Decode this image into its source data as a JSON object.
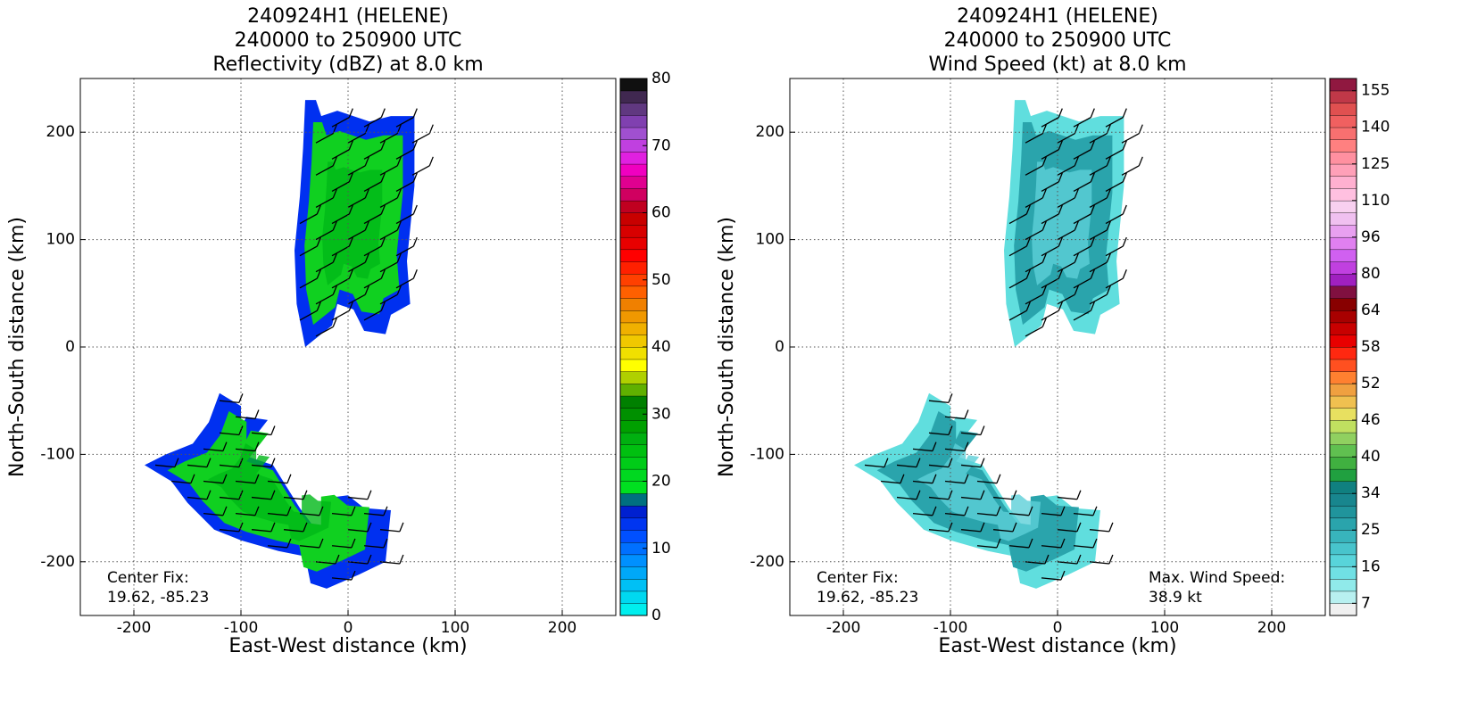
{
  "chart_data": [
    {
      "type": "contour",
      "title": [
        "240924H1 (HELENE)",
        "240000 to 250900 UTC",
        "Reflectivity (dBZ) at 8.0 km"
      ],
      "xlabel": "East-West distance (km)",
      "ylabel": "North-South distance (km)",
      "xlim": [
        -250,
        250
      ],
      "ylim": [
        -250,
        250
      ],
      "xticks": [
        -200,
        -100,
        0,
        100,
        200
      ],
      "yticks": [
        -200,
        -100,
        0,
        100,
        200
      ],
      "grid": true,
      "annotations": [
        "Center Fix:",
        "19.62, -85.23"
      ],
      "colorbar": {
        "lim": [
          0,
          80
        ],
        "ticks": [
          0,
          10,
          20,
          30,
          40,
          50,
          60,
          70,
          80
        ],
        "colors": [
          "#00eeee",
          "#00d8f0",
          "#00c0f5",
          "#00a8f8",
          "#0090ff",
          "#0070ff",
          "#0050ff",
          "#0035f0",
          "#0020d0",
          "#007080",
          "#00e020",
          "#00d820",
          "#00cc18",
          "#00c010",
          "#00b010",
          "#00a000",
          "#009000",
          "#008000",
          "#60b000",
          "#b0d000",
          "#ffff00",
          "#f0e000",
          "#f0c800",
          "#f0b000",
          "#f09800",
          "#f08000",
          "#ff6000",
          "#ff4000",
          "#ff2000",
          "#ff0000",
          "#e80000",
          "#d80000",
          "#c80000",
          "#c00020",
          "#d00060",
          "#e00090",
          "#f000c0",
          "#e020e0",
          "#c040e0",
          "#a050d0",
          "#8040b0",
          "#603880",
          "#402850",
          "#101010"
        ]
      }
    },
    {
      "type": "contour",
      "title": [
        "240924H1 (HELENE)",
        "240000 to 250900 UTC",
        "Wind Speed (kt) at 8.0 km"
      ],
      "xlabel": "East-West distance (km)",
      "ylabel": "North-South distance (km)",
      "xlim": [
        -250,
        250
      ],
      "ylim": [
        -250,
        250
      ],
      "xticks": [
        -200,
        -100,
        0,
        100,
        200
      ],
      "yticks": [
        -200,
        -100,
        0,
        100,
        200
      ],
      "grid": true,
      "annotations": [
        "Center Fix:",
        "19.62, -85.23",
        "Max. Wind Speed:",
        "38.9 kt"
      ],
      "colorbar": {
        "ticks": [
          7,
          16,
          25,
          34,
          40,
          46,
          52,
          58,
          64,
          80,
          96,
          110,
          125,
          140,
          155
        ],
        "colors": [
          "#f0f0f0",
          "#b8f0f0",
          "#90eaea",
          "#70e0e4",
          "#58d4da",
          "#48c4cc",
          "#38b4bc",
          "#2aa4ac",
          "#20949c",
          "#18868e",
          "#108080",
          "#20a040",
          "#40b040",
          "#60c050",
          "#90d060",
          "#c0e060",
          "#e8e060",
          "#f0c050",
          "#f0a040",
          "#ff8030",
          "#ff5020",
          "#ff2810",
          "#e80000",
          "#c80000",
          "#a80000",
          "#880000",
          "#801040",
          "#a020c0",
          "#c040e0",
          "#d060f0",
          "#e080f0",
          "#e8a0f0",
          "#f0c0f0",
          "#f8d0f0",
          "#ffc0e0",
          "#ffb0d0",
          "#ffa0b8",
          "#ff90a0",
          "#ff8080",
          "#f87070",
          "#f06060",
          "#e05050",
          "#c03848",
          "#901840"
        ]
      }
    }
  ]
}
